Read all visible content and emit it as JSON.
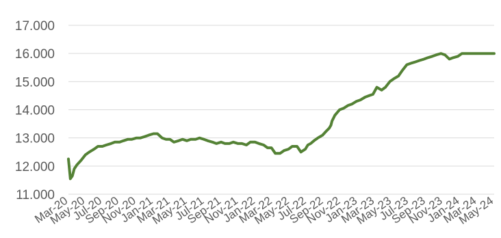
{
  "chart_data": {
    "type": "line",
    "title": "",
    "xlabel": "",
    "ylabel": "",
    "ylim": [
      11000,
      17000
    ],
    "yticks": [
      11000,
      12000,
      13000,
      14000,
      15000,
      16000,
      17000
    ],
    "ytick_labels": [
      "11.000",
      "12.000",
      "13.000",
      "14.000",
      "15.000",
      "16.000",
      "17.000"
    ],
    "x_tick_labels": [
      "Mar-20",
      "May-20",
      "Jul-20",
      "Sep-20",
      "Nov-20",
      "Jan-21",
      "Mar-21",
      "May-21",
      "Jul-21",
      "Sep-21",
      "Nov-21",
      "Jan-22",
      "Mar-22",
      "May-22",
      "Jul-22",
      "Sep-22",
      "Nov-22",
      "Jan-23",
      "Mar-23",
      "May-23",
      "Jul-23",
      "Sep-23",
      "Nov-23",
      "Jan-24",
      "Mar-24",
      "May-24"
    ],
    "grid": true,
    "legend": "none",
    "line_color": "#548235",
    "series": [
      {
        "x": [
          "2020-03-01",
          "2020-03-08",
          "2020-03-15",
          "2020-03-22",
          "2020-04-01",
          "2020-04-15",
          "2020-05-01",
          "2020-05-15",
          "2020-06-01",
          "2020-06-15",
          "2020-07-01",
          "2020-07-15",
          "2020-08-01",
          "2020-08-15",
          "2020-09-01",
          "2020-09-15",
          "2020-10-01",
          "2020-10-15",
          "2020-11-01",
          "2020-11-15",
          "2020-12-01",
          "2020-12-15",
          "2021-01-01",
          "2021-01-15",
          "2021-02-01",
          "2021-02-15",
          "2021-03-01",
          "2021-03-15",
          "2021-04-01",
          "2021-04-15",
          "2021-05-01",
          "2021-05-15",
          "2021-06-01",
          "2021-06-15",
          "2021-07-01",
          "2021-07-15",
          "2021-08-01",
          "2021-08-15",
          "2021-09-01",
          "2021-09-15",
          "2021-10-01",
          "2021-10-15",
          "2021-11-01",
          "2021-11-15",
          "2021-12-01",
          "2021-12-15",
          "2022-01-01",
          "2022-01-15",
          "2022-02-01",
          "2022-02-15",
          "2022-03-01",
          "2022-03-15",
          "2022-04-01",
          "2022-04-15",
          "2022-05-01",
          "2022-05-15",
          "2022-06-01",
          "2022-06-15",
          "2022-07-01",
          "2022-07-10",
          "2022-07-20",
          "2022-08-01",
          "2022-08-15",
          "2022-09-01",
          "2022-09-15",
          "2022-09-25",
          "2022-10-01",
          "2022-10-05",
          "2022-10-15",
          "2022-11-01",
          "2022-11-15",
          "2022-12-01",
          "2022-12-15",
          "2023-01-01",
          "2023-01-15",
          "2023-02-01",
          "2023-02-15",
          "2023-03-01",
          "2023-03-15",
          "2023-04-01",
          "2023-04-15",
          "2023-05-01",
          "2023-05-15",
          "2023-06-01",
          "2023-06-15",
          "2023-07-01",
          "2023-07-15",
          "2023-08-01",
          "2023-08-15",
          "2023-09-01",
          "2023-09-15",
          "2023-10-01",
          "2023-10-15",
          "2023-11-01",
          "2023-11-15",
          "2023-12-01",
          "2023-12-15",
          "2024-01-01",
          "2024-01-15",
          "2024-02-01",
          "2024-02-15",
          "2024-03-01",
          "2024-03-15",
          "2024-04-01",
          "2024-04-10",
          "2024-04-20",
          "2024-05-01",
          "2024-05-10"
        ],
        "values": [
          12250,
          11550,
          11650,
          11900,
          12050,
          12200,
          12400,
          12500,
          12600,
          12700,
          12700,
          12750,
          12800,
          12850,
          12850,
          12900,
          12950,
          12950,
          13000,
          13000,
          13050,
          13100,
          13150,
          13150,
          13000,
          12950,
          12950,
          12850,
          12900,
          12950,
          12900,
          12950,
          12950,
          13000,
          12950,
          12900,
          12850,
          12800,
          12850,
          12800,
          12800,
          12850,
          12800,
          12800,
          12750,
          12850,
          12850,
          12800,
          12750,
          12650,
          12650,
          12450,
          12450,
          12550,
          12600,
          12700,
          12700,
          12500,
          12600,
          12750,
          12800,
          12900,
          13000,
          13100,
          13250,
          13350,
          13450,
          13600,
          13800,
          14000,
          14050,
          14150,
          14200,
          14300,
          14350,
          14450,
          14500,
          14550,
          14800,
          14700,
          14800,
          15000,
          15100,
          15200,
          15400,
          15600,
          15650,
          15700,
          15750,
          15800,
          15850,
          15900,
          15950,
          16000,
          15950,
          15800,
          15850,
          15900,
          16000,
          16000,
          16000,
          16000,
          16000,
          16000,
          16000,
          16000,
          16000,
          16000
        ]
      }
    ]
  }
}
